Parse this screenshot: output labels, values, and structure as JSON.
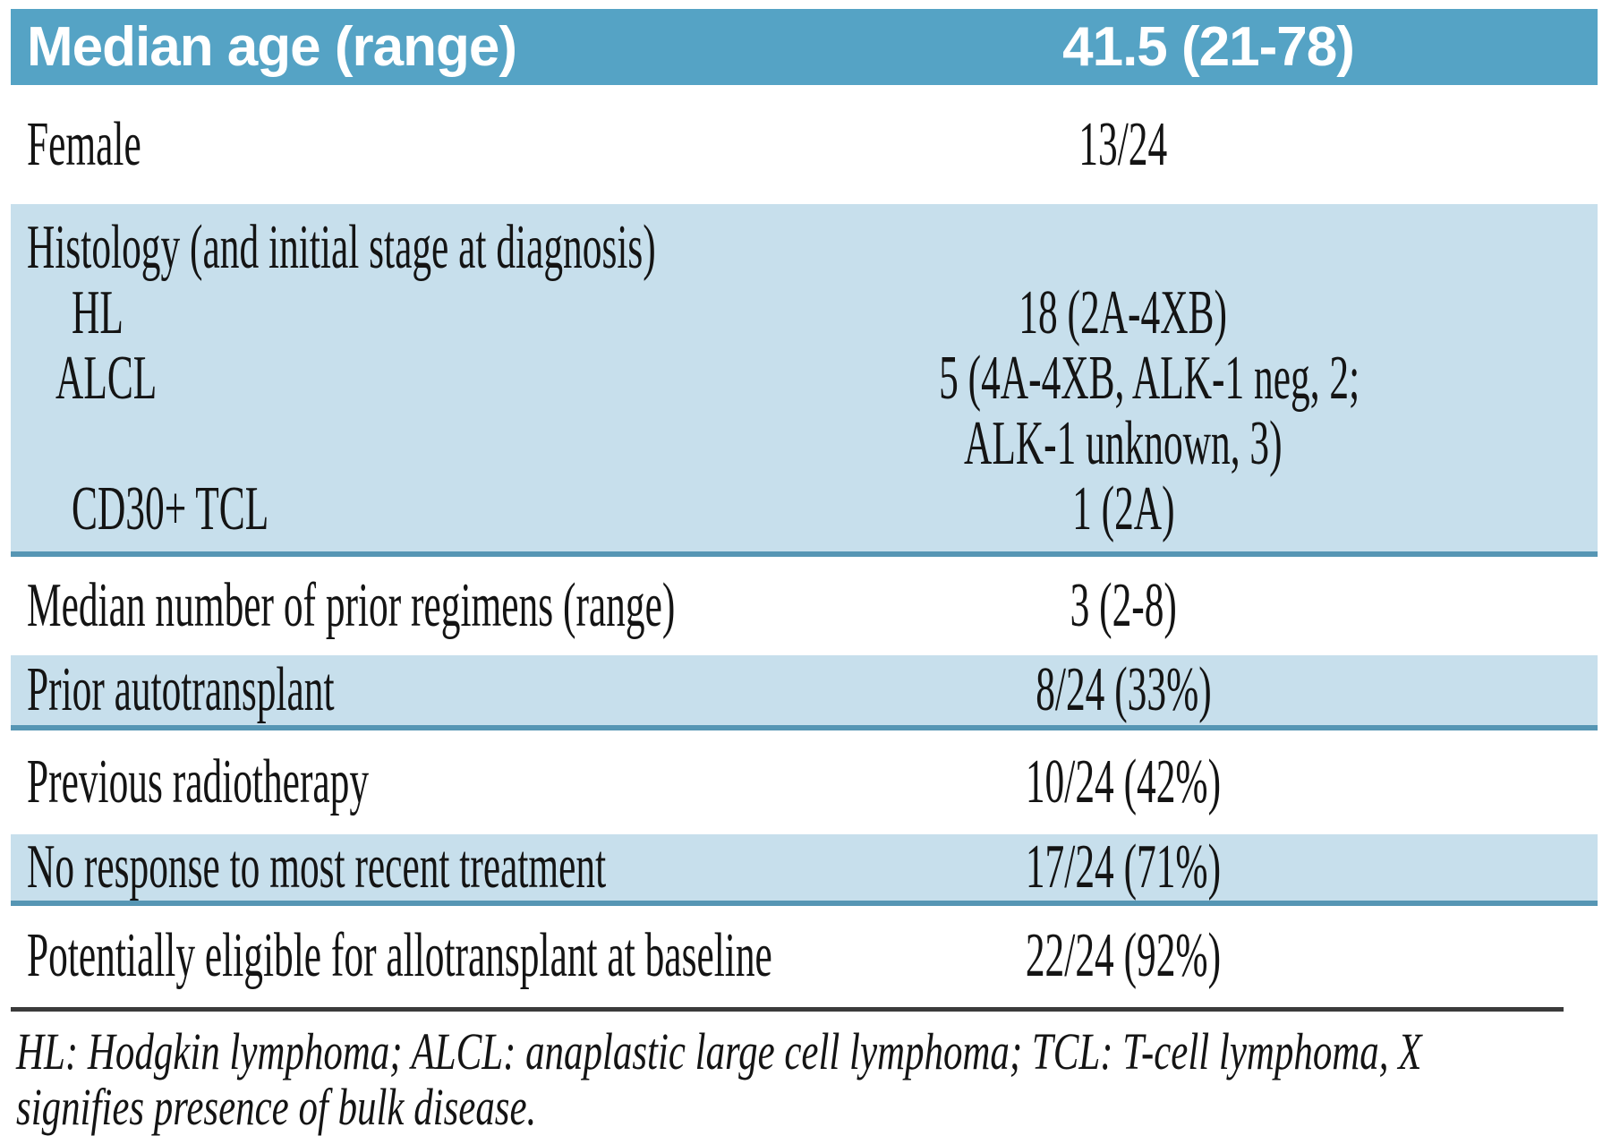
{
  "header_row": {
    "label": "Median age (range)",
    "value": "41.5 (21-78)"
  },
  "rows": [
    {
      "label": "Female",
      "value": "13/24"
    },
    {
      "label": "Histology (and initial stage at diagnosis)",
      "value": ""
    },
    {
      "label": "HL",
      "value": "18 (2A-4XB)"
    },
    {
      "label": "ALCL",
      "value": "5 (4A-4XB, ALK-1 neg, 2;"
    },
    {
      "label": "",
      "value": "ALK-1 unknown, 3)"
    },
    {
      "label": "CD30+ TCL",
      "value": "1 (2A)"
    },
    {
      "label": "Median number of prior regimens (range)",
      "value": "3 (2-8)"
    },
    {
      "label": "Prior autotransplant",
      "value": "8/24 (33%)"
    },
    {
      "label": "Previous radiotherapy",
      "value": "10/24 (42%)"
    },
    {
      "label": "No response to most recent treatment",
      "value": "17/24 (71%)"
    },
    {
      "label": "Potentially eligible for allotransplant at baseline",
      "value": "22/24 (92%)"
    }
  ],
  "footnote": {
    "lines": [
      "HL: Hodgkin lymphoma; ALCL: anaplastic large cell lymphoma; TCL: T-cell lymphoma, X",
      "signifies presence of bulk disease."
    ],
    "full_text": "HL: Hodgkin lymphoma; ALCL: anaplastic large cell lymphoma; TCL: T-cell lymphoma, X signifies presence of bulk disease."
  },
  "colors": {
    "header_bg": "#55a3c5",
    "section_bg": "#c7dfec",
    "divider": "#5696b4",
    "rule": "#3b3b3b",
    "header_text": "#ffffff",
    "text": "#141414"
  }
}
